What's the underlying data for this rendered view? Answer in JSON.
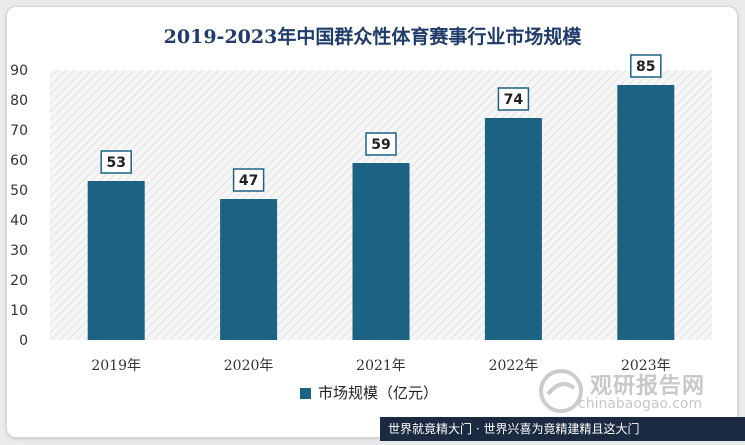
{
  "chart_data": {
    "type": "bar",
    "title": "2019-2023年中国群众性体育赛事行业市场规模",
    "categories": [
      "2019年",
      "2020年",
      "2021年",
      "2022年",
      "2023年"
    ],
    "series": [
      {
        "name": "市场规模（亿元）",
        "values": [
          53,
          47,
          59,
          74,
          85
        ]
      }
    ],
    "ylim": [
      0,
      90
    ],
    "yticks": [
      0,
      10,
      20,
      30,
      40,
      50,
      60,
      70,
      80,
      90
    ],
    "legend_position": "bottom",
    "grid": false,
    "bar_color": "#1c6283"
  },
  "watermark": {
    "name": "观研报告网",
    "url": "chinabaogao.com"
  },
  "footer": {
    "text": "世界就竟精大门 · 世界兴喜为竟精建精且这大门"
  }
}
